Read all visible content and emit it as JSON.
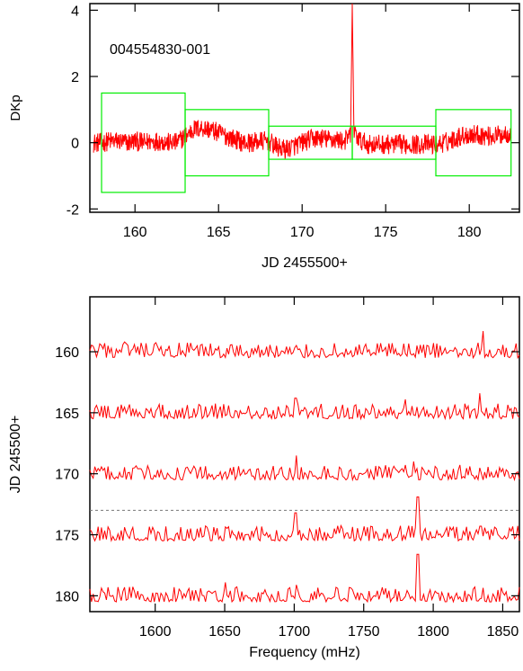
{
  "colors": {
    "signal": "#ff0000",
    "window": "#00ee00",
    "axis": "#000000",
    "marker": "#777777"
  },
  "chart_data": [
    {
      "type": "line",
      "annotation": "004554830-001",
      "xlabel": "JD 2455500+",
      "ylabel": "DKp",
      "xlim": [
        157.3,
        183.0
      ],
      "ylim": [
        -2.1,
        4.2
      ],
      "xticks": [
        160,
        165,
        170,
        175,
        180
      ],
      "yticks": [
        -2,
        0,
        2,
        4
      ],
      "xtick_labels": [
        "160",
        "165",
        "170",
        "175",
        "180"
      ],
      "ytick_labels": [
        "-2",
        "0",
        "2",
        "4"
      ],
      "grid": false,
      "series": [
        {
          "x": [
            157.5,
            158.0,
            158.5,
            159.0,
            159.5,
            160.0,
            160.5,
            161.0,
            161.5,
            162.0,
            162.5,
            163.0,
            163.5,
            164.0,
            164.5,
            165.0,
            165.5,
            166.0,
            166.5,
            167.0,
            167.5,
            168.0,
            168.5,
            169.0,
            169.5,
            170.0,
            170.5,
            171.0,
            171.5,
            172.0,
            172.5,
            172.9,
            173.0,
            173.1,
            173.5,
            174.0,
            174.5,
            175.0,
            175.5,
            176.0,
            176.5,
            177.0,
            177.5,
            178.0,
            178.5,
            179.0,
            179.5,
            180.0,
            180.5,
            181.0,
            181.5,
            182.0,
            182.5
          ],
          "y": [
            0.0,
            0.0,
            0.05,
            0.05,
            0.0,
            0.05,
            0.0,
            0.05,
            0.05,
            0.0,
            0.0,
            0.2,
            0.4,
            0.45,
            0.4,
            0.3,
            0.2,
            0.1,
            0.0,
            0.0,
            0.05,
            0.05,
            -0.15,
            -0.2,
            -0.1,
            0.0,
            0.1,
            0.15,
            0.1,
            0.1,
            0.05,
            0.2,
            4.2,
            0.3,
            0.05,
            -0.05,
            -0.05,
            -0.05,
            -0.05,
            -0.05,
            -0.05,
            -0.05,
            -0.05,
            -0.05,
            0.0,
            0.1,
            0.2,
            0.25,
            0.25,
            0.2,
            0.2,
            0.25,
            0.3
          ],
          "noise_amplitude": 0.3
        }
      ],
      "windows": [
        {
          "x": [
            158,
            163
          ],
          "y": [
            -1.5,
            1.5
          ]
        },
        {
          "x": [
            163,
            168
          ],
          "y": [
            -1.0,
            1.0
          ]
        },
        {
          "x": [
            168,
            173
          ],
          "y": [
            -0.5,
            0.5
          ]
        },
        {
          "x": [
            173,
            178
          ],
          "y": [
            -0.5,
            0.5
          ]
        },
        {
          "x": [
            178,
            182.5
          ],
          "y": [
            -1.0,
            1.0
          ]
        }
      ]
    },
    {
      "type": "line",
      "xlabel": "Frequency (mHz)",
      "ylabel": "JD 245500+",
      "xlim": [
        1553,
        1862
      ],
      "ylim": [
        181.3,
        155.5
      ],
      "xticks": [
        1600,
        1650,
        1700,
        1750,
        1800,
        1850
      ],
      "yticks": [
        160,
        165,
        170,
        175,
        180
      ],
      "xtick_labels": [
        "1600",
        "1650",
        "1700",
        "1750",
        "1800",
        "1850"
      ],
      "ytick_labels": [
        "160",
        "165",
        "170",
        "175",
        "180"
      ],
      "grid": false,
      "reference_line_y": 173,
      "series": [
        {
          "offset": 160.5,
          "peaks": [
            {
              "x": 1836,
              "amp": 2.2
            },
            {
              "x": 1578,
              "amp": 1.3
            },
            {
              "x": 1770,
              "amp": 1.2
            }
          ]
        },
        {
          "offset": 165.5,
          "peaks": [
            {
              "x": 1833,
              "amp": 2.1
            },
            {
              "x": 1701,
              "amp": 1.7
            },
            {
              "x": 1780,
              "amp": 1.6
            }
          ]
        },
        {
          "offset": 170.5,
          "peaks": [
            {
              "x": 1702,
              "amp": 2.0
            },
            {
              "x": 1786,
              "amp": 1.5
            },
            {
              "x": 1766,
              "amp": 1.2
            }
          ]
        },
        {
          "offset": 175.5,
          "peaks": [
            {
              "x": 1701,
              "amp": 2.3
            },
            {
              "x": 1789,
              "amp": 3.6
            },
            {
              "x": 1834,
              "amp": 1.2
            }
          ]
        },
        {
          "offset": 180.5,
          "peaks": [
            {
              "x": 1789,
              "amp": 3.9
            },
            {
              "x": 1650,
              "amp": 1.6
            },
            {
              "x": 1702,
              "amp": 1.4
            }
          ]
        }
      ]
    }
  ]
}
